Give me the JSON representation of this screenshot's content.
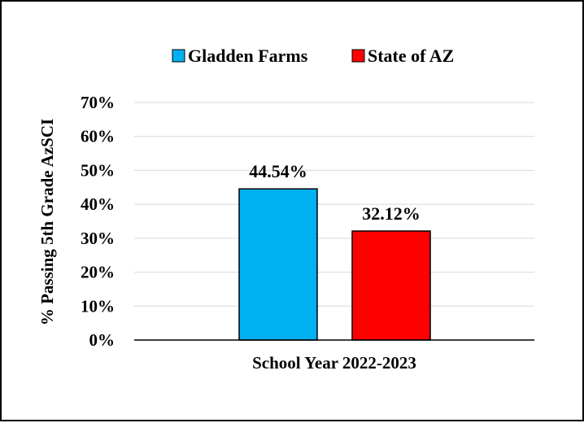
{
  "chart_data": {
    "type": "bar",
    "categories": [
      "School Year 2022-2023"
    ],
    "series": [
      {
        "name": "Gladden Farms",
        "values": [
          44.54
        ],
        "color": "#00B0F0"
      },
      {
        "name": "State of AZ",
        "values": [
          32.12
        ],
        "color": "#FF0000"
      }
    ],
    "data_labels": [
      "44.54%",
      "32.12%"
    ],
    "xlabel": "School Year 2022-2023",
    "ylabel": "% Passing 5th Grade AzSCI",
    "ylim": [
      0,
      70
    ],
    "yticks": [
      0,
      10,
      20,
      30,
      40,
      50,
      60,
      70
    ],
    "ytick_labels": [
      "0%",
      "10%",
      "20%",
      "30%",
      "40%",
      "50%",
      "60%",
      "70%"
    ],
    "grid": true,
    "legend_position": "top"
  }
}
